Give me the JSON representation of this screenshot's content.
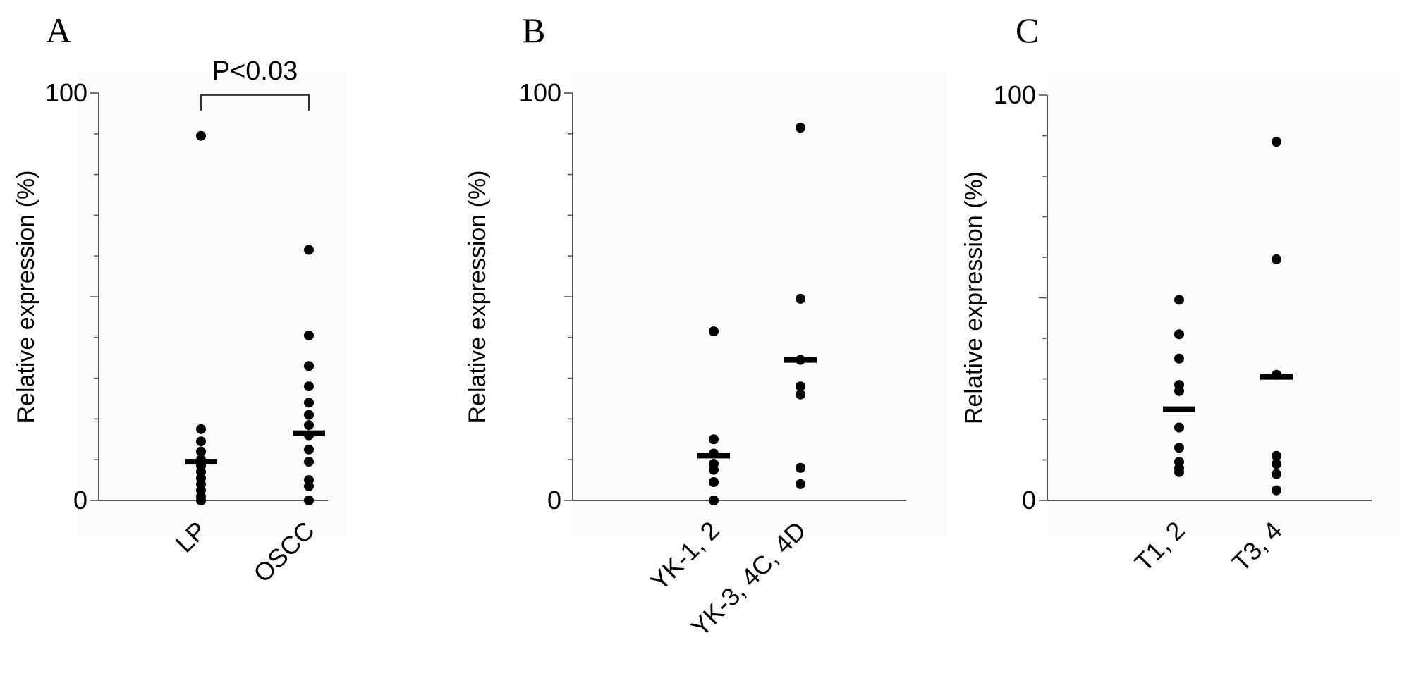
{
  "chart_data": [
    {
      "type": "scatter",
      "panel_label": "A",
      "ylabel": "Relative expression (%)",
      "ylim": [
        0,
        100
      ],
      "yticks": [
        "0",
        "100"
      ],
      "categories": [
        "LP",
        "OSCC"
      ],
      "series": [
        {
          "category": "LP",
          "values": [
            89.5,
            17.5,
            14.5,
            12,
            10,
            8.5,
            7,
            5.5,
            4,
            2.5,
            1,
            0
          ],
          "mean": 9.5
        },
        {
          "category": "OSCC",
          "values": [
            61.5,
            40.5,
            33,
            28,
            24,
            21,
            18.5,
            16,
            12.5,
            9.5,
            5,
            3.5,
            0
          ],
          "mean": 16.5
        }
      ],
      "annotation": {
        "text": "P<0.03",
        "from": "LP",
        "to": "OSCC"
      }
    },
    {
      "type": "scatter",
      "panel_label": "B",
      "ylabel": "Relative expression (%)",
      "ylim": [
        0,
        100
      ],
      "yticks": [
        "0",
        "100"
      ],
      "categories": [
        "YK-1, 2",
        "YK-3, 4C, 4D"
      ],
      "series": [
        {
          "category": "YK-1, 2",
          "values": [
            41.5,
            15,
            11.5,
            9,
            7.5,
            4.5,
            0
          ],
          "mean": 11
        },
        {
          "category": "YK-3, 4C, 4D",
          "values": [
            91.5,
            49.5,
            34.5,
            28,
            26,
            8,
            4
          ],
          "mean": 34.5
        }
      ],
      "annotation": null
    },
    {
      "type": "scatter",
      "panel_label": "C",
      "ylabel": "Relative expression (%)",
      "ylim": [
        0,
        100
      ],
      "yticks": [
        "0",
        "100"
      ],
      "categories": [
        "T1, 2",
        "T3, 4"
      ],
      "series": [
        {
          "category": "T1, 2",
          "values": [
            49.5,
            41,
            35,
            28.5,
            27,
            18,
            13,
            9.5,
            8,
            7
          ],
          "mean": 22.5
        },
        {
          "category": "T3, 4",
          "values": [
            88.5,
            59.5,
            31,
            11,
            9,
            6.5,
            2.5
          ],
          "mean": 30.5
        }
      ],
      "annotation": null
    }
  ]
}
